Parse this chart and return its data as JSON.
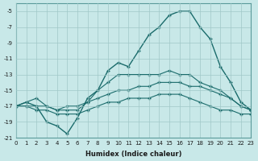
{
  "xlabel": "Humidex (Indice chaleur)",
  "ylabel": "",
  "background_color": "#c8e8e8",
  "grid_color": "#a0c8c8",
  "line_color": "#1a6b6b",
  "xlim": [
    0,
    23
  ],
  "ylim": [
    -21,
    -4
  ],
  "yticks": [
    -5,
    -7,
    -9,
    -11,
    -13,
    -15,
    -17,
    -19,
    -21
  ],
  "xticks": [
    0,
    1,
    2,
    3,
    4,
    5,
    6,
    7,
    8,
    9,
    10,
    11,
    12,
    13,
    14,
    15,
    16,
    17,
    18,
    19,
    20,
    21,
    22,
    23
  ],
  "line1_x": [
    0,
    1,
    2,
    3,
    4,
    5,
    6,
    7,
    8,
    9,
    10,
    11,
    12,
    13,
    14,
    15,
    16,
    17,
    18,
    19,
    20,
    21,
    22,
    23
  ],
  "line1_y": [
    -17,
    -16.5,
    -16,
    -17,
    -17.5,
    -17,
    -17,
    -16.5,
    -15,
    -14,
    -13,
    -13,
    -13,
    -13,
    -13,
    -12.5,
    -13,
    -13,
    -14,
    -14.5,
    -15,
    -16,
    -17,
    -17.5
  ],
  "line2_x": [
    0,
    1,
    2,
    3,
    4,
    5,
    6,
    7,
    8,
    9,
    10,
    11,
    12,
    13,
    14,
    15,
    16,
    17,
    18,
    19,
    20,
    21,
    22,
    23
  ],
  "line2_y": [
    -17,
    -16.5,
    -17,
    -19,
    -19.5,
    -20.5,
    -18.5,
    -16,
    -15,
    -12.5,
    -11.5,
    -12,
    -10,
    -8,
    -7,
    -5.5,
    -5,
    -5,
    -7,
    -8.5,
    -12,
    -14,
    -16.5,
    -17.5
  ],
  "line3_x": [
    0,
    1,
    2,
    3,
    4,
    5,
    6,
    7,
    8,
    9,
    10,
    11,
    12,
    13,
    14,
    15,
    16,
    17,
    18,
    19,
    20,
    21,
    22,
    23
  ],
  "line3_y": [
    -17,
    -17,
    -17,
    -17,
    -17.5,
    -17.5,
    -17.5,
    -16.5,
    -16,
    -15.5,
    -15,
    -15,
    -14.5,
    -14.5,
    -14,
    -14,
    -14,
    -14.5,
    -14.5,
    -15,
    -15.5,
    -16,
    -17,
    -17.5
  ],
  "line4_x": [
    0,
    1,
    2,
    3,
    4,
    5,
    6,
    7,
    8,
    9,
    10,
    11,
    12,
    13,
    14,
    15,
    16,
    17,
    18,
    19,
    20,
    21,
    22,
    23
  ],
  "line4_y": [
    -17,
    -17,
    -17.5,
    -17.5,
    -18,
    -18,
    -18,
    -17.5,
    -17,
    -16.5,
    -16.5,
    -16,
    -16,
    -16,
    -15.5,
    -15.5,
    -15.5,
    -16,
    -16.5,
    -17,
    -17.5,
    -17.5,
    -18,
    -18
  ]
}
